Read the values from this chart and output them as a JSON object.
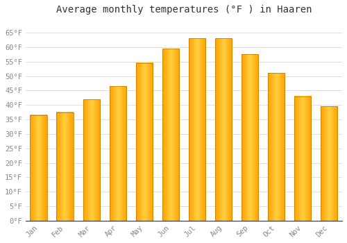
{
  "title": "Average monthly temperatures (°F ) in Haaren",
  "months": [
    "Jan",
    "Feb",
    "Mar",
    "Apr",
    "May",
    "Jun",
    "Jul",
    "Aug",
    "Sep",
    "Oct",
    "Nov",
    "Dec"
  ],
  "values": [
    36.5,
    37.5,
    42.0,
    46.5,
    54.5,
    59.5,
    63.0,
    63.0,
    57.5,
    51.0,
    43.0,
    39.5
  ],
  "ylim": [
    0,
    70
  ],
  "yticks": [
    0,
    5,
    10,
    15,
    20,
    25,
    30,
    35,
    40,
    45,
    50,
    55,
    60,
    65
  ],
  "ytick_labels": [
    "0°F",
    "5°F",
    "10°F",
    "15°F",
    "20°F",
    "25°F",
    "30°F",
    "35°F",
    "40°F",
    "45°F",
    "50°F",
    "55°F",
    "60°F",
    "65°F"
  ],
  "background_color": "#FFFFFF",
  "grid_color": "#E0E0E0",
  "title_fontsize": 10,
  "tick_fontsize": 7.5,
  "bar_edge_color": "#C88000",
  "bar_color_center": "#FFD040",
  "bar_color_edge": "#FFA000",
  "tick_color": "#888888"
}
